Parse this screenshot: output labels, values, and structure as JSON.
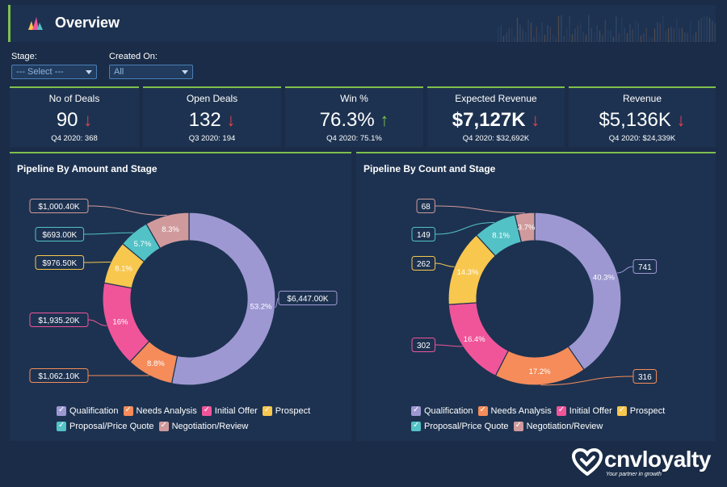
{
  "header": {
    "title": "Overview"
  },
  "filters": [
    {
      "label": "Stage:",
      "value": "--- Select ---"
    },
    {
      "label": "Created On:",
      "value": "All"
    }
  ],
  "kpis": [
    {
      "title": "No of Deals",
      "value": "90",
      "trend": "down",
      "subtitle": "Q4 2020: 368"
    },
    {
      "title": "Open Deals",
      "value": "132",
      "trend": "down",
      "subtitle": "Q3 2020: 194"
    },
    {
      "title": "Win %",
      "value": "76.3%",
      "trend": "up",
      "subtitle": "Q4 2020: 75.1%"
    },
    {
      "title": "Expected Revenue",
      "value": "$7,127K",
      "trend": "down",
      "subtitle": "Q4 2020: $32,692K"
    },
    {
      "title": "Revenue",
      "value": "$5,136K",
      "trend": "down",
      "subtitle": "Q4 2020: $24,339K"
    }
  ],
  "colors": {
    "accent": "#7fbf4d",
    "down": "#e8434f",
    "Qualification": "#9d98d2",
    "Needs Analysis": "#f58c5a",
    "Initial Offer": "#f0559a",
    "Prospect": "#f8c74e",
    "Proposal/Price Quote": "#52c2c6",
    "Negotiation/Review": "#d09a9c"
  },
  "icons": {
    "app_logo": "bar-chart-logo-icon",
    "brand_logo": "heart-logo-icon"
  },
  "chart_data": [
    {
      "type": "pie",
      "title": "Pipeline By Amount and Stage",
      "donut": true,
      "categories": [
        "Qualification",
        "Needs Analysis",
        "Initial Offer",
        "Prospect",
        "Proposal/Price Quote",
        "Negotiation/Review"
      ],
      "values": [
        6447.0,
        1062.1,
        1935.2,
        976.5,
        693.0,
        1000.4
      ],
      "percent_labels": [
        "53.2%",
        "8.8%",
        "16%",
        "8.1%",
        "5.7%",
        "8.3%"
      ],
      "value_labels": [
        "$6,447.00K",
        "$1,062.10K",
        "$1,935.20K",
        "$976.50K",
        "$693.00K",
        "$1,000.40K"
      ],
      "legend": "bottom"
    },
    {
      "type": "pie",
      "title": "Pipeline By Count and Stage",
      "donut": true,
      "categories": [
        "Qualification",
        "Needs Analysis",
        "Initial Offer",
        "Prospect",
        "Proposal/Price Quote",
        "Negotiation/Review"
      ],
      "values": [
        741,
        316,
        302,
        262,
        149,
        68
      ],
      "percent_labels": [
        "40.3%",
        "17.2%",
        "16.4%",
        "14.3%",
        "8.1%",
        "3.7%"
      ],
      "value_labels": [
        "741",
        "316",
        "302",
        "262",
        "149",
        "68"
      ],
      "legend": "bottom"
    }
  ],
  "brand": {
    "name": "cnvloyalty",
    "tagline": "Your partner in growth"
  }
}
